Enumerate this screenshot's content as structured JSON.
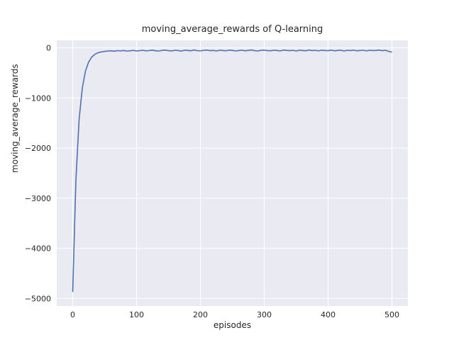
{
  "chart_data": {
    "type": "line",
    "title": "moving_average_rewards of Q-learning",
    "xlabel": "episodes",
    "ylabel": "moving_average_rewards",
    "xlim": [
      -25,
      525
    ],
    "ylim": [
      -5150,
      150
    ],
    "grid": true,
    "legend_position": "none",
    "plot_background_color": "#eaeaf2",
    "grid_color": "#ffffff",
    "line_color": "#4c72b0",
    "x_ticks": [
      0,
      100,
      200,
      300,
      400,
      500
    ],
    "x_tick_labels": [
      "0",
      "100",
      "200",
      "300",
      "400",
      "500"
    ],
    "y_ticks": [
      0,
      -1000,
      -2000,
      -3000,
      -4000,
      -5000
    ],
    "y_tick_labels": [
      "0",
      "−1000",
      "−2000",
      "−3000",
      "−4000",
      "−5000"
    ],
    "series": [
      {
        "name": "moving_average_rewards",
        "x": [
          0,
          5,
          10,
          15,
          20,
          25,
          30,
          35,
          40,
          45,
          50,
          55,
          60,
          65,
          70,
          75,
          80,
          85,
          90,
          95,
          100,
          105,
          110,
          115,
          120,
          125,
          130,
          135,
          140,
          145,
          150,
          155,
          160,
          165,
          170,
          175,
          180,
          185,
          190,
          195,
          200,
          205,
          210,
          215,
          220,
          225,
          230,
          235,
          240,
          245,
          250,
          255,
          260,
          265,
          270,
          275,
          280,
          285,
          290,
          295,
          300,
          305,
          310,
          315,
          320,
          325,
          330,
          335,
          340,
          345,
          350,
          355,
          360,
          365,
          370,
          375,
          380,
          385,
          390,
          395,
          400,
          405,
          410,
          415,
          420,
          425,
          430,
          435,
          440,
          445,
          450,
          455,
          460,
          465,
          470,
          475,
          480,
          485,
          490,
          495,
          500
        ],
        "y": [
          -4870,
          -2640,
          -1430,
          -805,
          -460,
          -280,
          -180,
          -125,
          -95,
          -80,
          -70,
          -62,
          -58,
          -66,
          -55,
          -60,
          -52,
          -64,
          -58,
          -50,
          -62,
          -55,
          -48,
          -60,
          -53,
          -45,
          -58,
          -62,
          -50,
          -44,
          -56,
          -60,
          -48,
          -52,
          -64,
          -46,
          -50,
          -58,
          -42,
          -55,
          -60,
          -48,
          -44,
          -56,
          -50,
          -62,
          -46,
          -52,
          -58,
          -44,
          -50,
          -60,
          -54,
          -46,
          -58,
          -50,
          -42,
          -56,
          -62,
          -48,
          -44,
          -54,
          -58,
          -46,
          -52,
          -60,
          -44,
          -50,
          -56,
          -48,
          -62,
          -46,
          -52,
          -58,
          -42,
          -54,
          -48,
          -60,
          -46,
          -52,
          -56,
          -44,
          -58,
          -50,
          -46,
          -62,
          -48,
          -54,
          -44,
          -58,
          -52,
          -46,
          -60,
          -48,
          -54,
          -50,
          -44,
          -56,
          -48,
          -70,
          -85
        ]
      }
    ]
  }
}
